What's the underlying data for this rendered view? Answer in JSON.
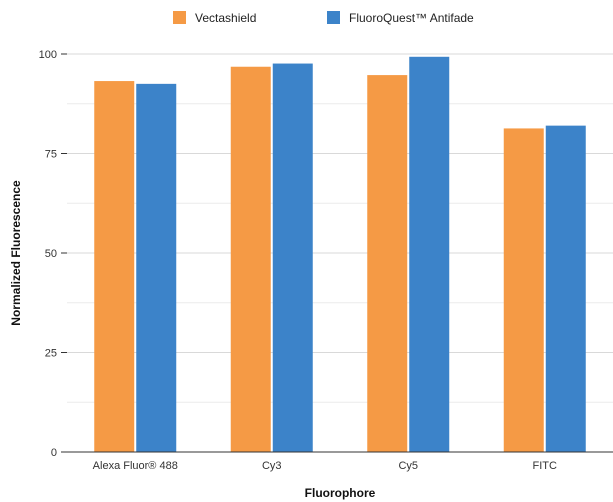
{
  "chart_data": {
    "type": "bar",
    "title": "",
    "xlabel": "Fluorophore",
    "ylabel": "Normalized Fluorescence",
    "categories": [
      "Alexa Fluor® 488",
      "Cy3",
      "Cy5",
      "FITC"
    ],
    "series": [
      {
        "name": "Vectashield",
        "color": "#f59a45",
        "values": [
          93.2,
          96.8,
          94.7,
          81.3
        ]
      },
      {
        "name": "FluoroQuest™ Antifade",
        "color": "#3c83c9",
        "values": [
          92.5,
          97.6,
          99.3,
          82.0
        ]
      }
    ],
    "ylim": [
      0,
      100
    ],
    "yticks": [
      0,
      25,
      50,
      75,
      100
    ],
    "grid": true,
    "legend": "top-center"
  }
}
